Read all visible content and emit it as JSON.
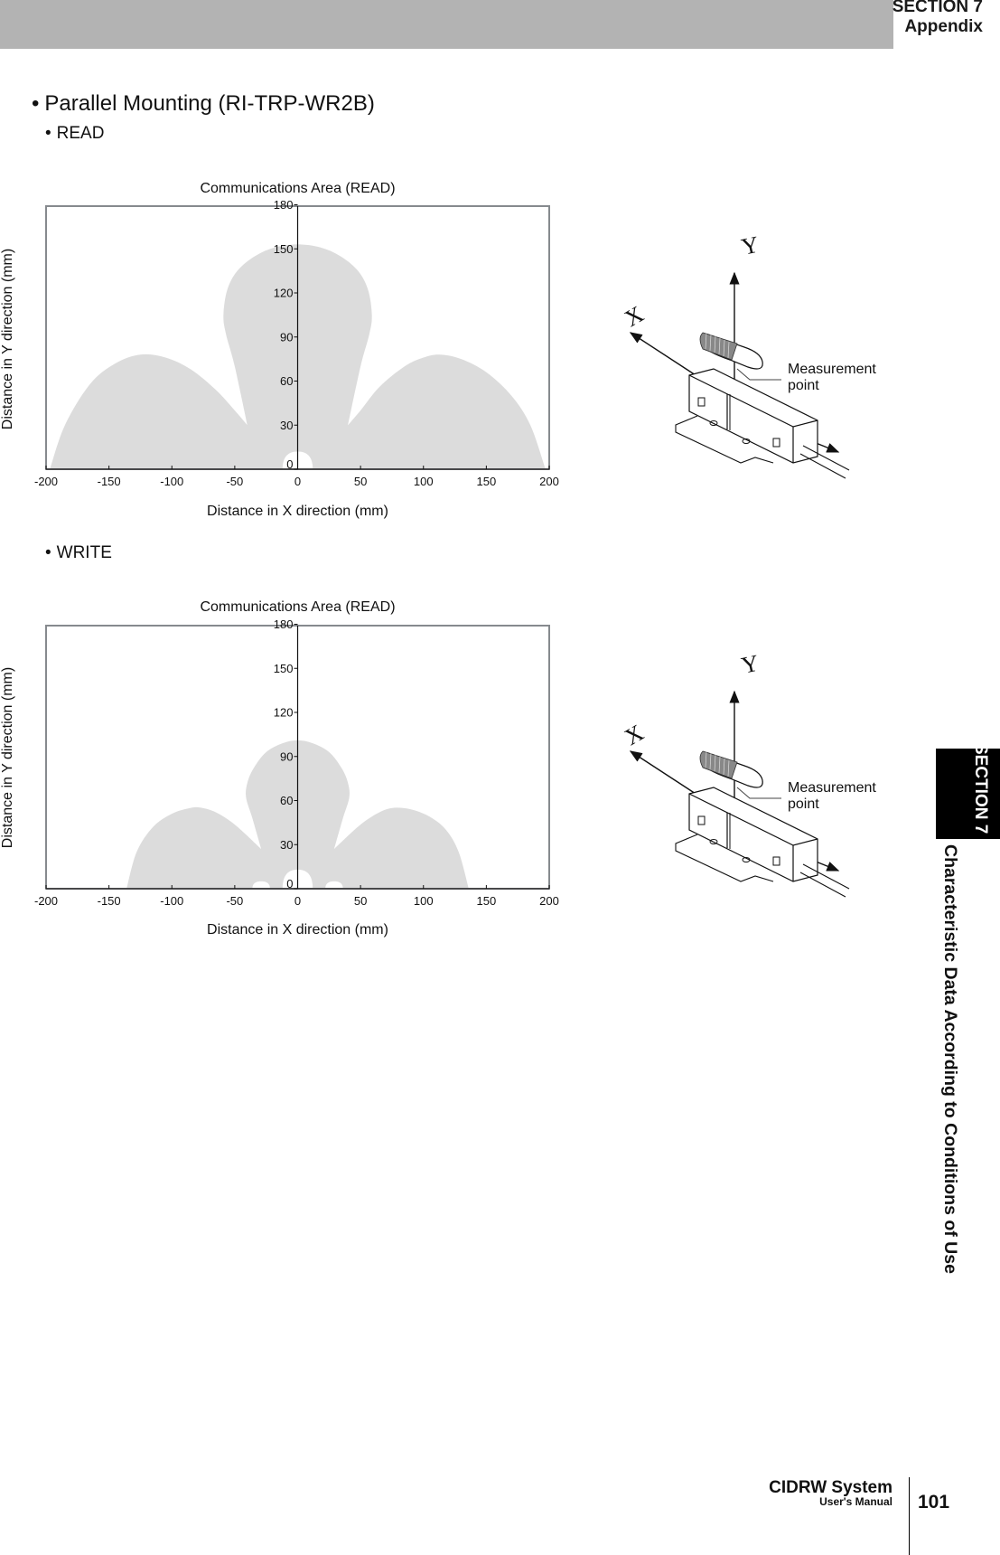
{
  "header": {
    "section": "SECTION 7",
    "chapter": "Appendix"
  },
  "page_title": "Parallel Mounting (RI-TRP-WR2B)",
  "bullet": "•",
  "sections": [
    {
      "label": "READ",
      "chart_title": "Communications Area (READ)"
    },
    {
      "label": "WRITE",
      "chart_title": "Communications Area (READ)"
    }
  ],
  "axis": {
    "xlabel": "Distance in X direction (mm)",
    "ylabel": "Distance in Y direction (mm)"
  },
  "illustration": {
    "x_axis": "X",
    "y_axis": "Y",
    "measurement_point": [
      "Measurement",
      "point"
    ]
  },
  "side_tab": {
    "section": "SECTION 7",
    "title": "Characteristic Data According to Conditions of Use"
  },
  "footer": {
    "product": "CIDRW System",
    "doc": "User's Manual",
    "page": "101"
  },
  "colors": {
    "header_bar": "#b3b3b3",
    "area_fill": "#dcdcdc",
    "frame": "#868a8e",
    "tab_bg": "#000000"
  },
  "chart_data": [
    {
      "type": "area",
      "title": "Communications Area (READ)",
      "subtitle": "READ",
      "xlabel": "Distance in X direction (mm)",
      "ylabel": "Distance in Y direction (mm)",
      "xlim": [
        -200,
        200
      ],
      "ylim": [
        0,
        180
      ],
      "xticks": [
        -200,
        -150,
        -100,
        -50,
        0,
        50,
        100,
        150,
        200
      ],
      "yticks": [
        0,
        30,
        60,
        90,
        120,
        150,
        180
      ],
      "grid": false,
      "legend": null,
      "boundary": {
        "x": [
          -197,
          -185,
          -165,
          -145,
          -125,
          -105,
          -85,
          -65,
          -50,
          -40,
          -50,
          -57,
          -59,
          -56,
          -48,
          -34,
          -18,
          0,
          18,
          34,
          48,
          56,
          59,
          57,
          50,
          40,
          50,
          65,
          85,
          100,
          113,
          130,
          150,
          170,
          185,
          197
        ],
        "y": [
          0,
          30,
          58,
          72,
          78,
          76,
          68,
          54,
          40,
          30,
          70,
          92,
          105,
          122,
          135,
          145,
          151,
          153,
          151,
          145,
          135,
          122,
          105,
          92,
          70,
          30,
          40,
          56,
          70,
          76,
          78,
          75,
          66,
          50,
          30,
          0
        ]
      },
      "holes": [
        {
          "cx": 0,
          "half_width": 12,
          "height": 12
        }
      ]
    },
    {
      "type": "area",
      "title": "Communications Area (READ)",
      "subtitle": "WRITE",
      "xlabel": "Distance in X direction (mm)",
      "ylabel": "Distance in Y direction (mm)",
      "xlim": [
        -200,
        200
      ],
      "ylim": [
        0,
        180
      ],
      "xticks": [
        -200,
        -150,
        -100,
        -50,
        0,
        50,
        100,
        150,
        200
      ],
      "yticks": [
        0,
        30,
        60,
        90,
        120,
        150,
        180
      ],
      "grid": false,
      "legend": null,
      "boundary": {
        "x": [
          -136,
          -128,
          -115,
          -100,
          -85,
          -76,
          -65,
          -52,
          -40,
          -29,
          -36,
          -41,
          -40,
          -35,
          -25,
          -12,
          0,
          12,
          25,
          35,
          40,
          41,
          36,
          29,
          40,
          52,
          65,
          76,
          90,
          105,
          118,
          128,
          136
        ],
        "y": [
          0,
          25,
          42,
          51,
          55,
          55,
          52,
          45,
          36,
          27,
          48,
          62,
          72,
          82,
          93,
          99,
          101,
          99,
          93,
          82,
          72,
          62,
          48,
          27,
          36,
          45,
          52,
          55,
          54,
          49,
          40,
          25,
          0
        ]
      },
      "holes": [
        {
          "cx": 0,
          "half_width": 12,
          "height": 13
        },
        {
          "cx": -29,
          "half_width": 7,
          "height": 5
        },
        {
          "cx": 29,
          "half_width": 7,
          "height": 5
        }
      ]
    }
  ]
}
